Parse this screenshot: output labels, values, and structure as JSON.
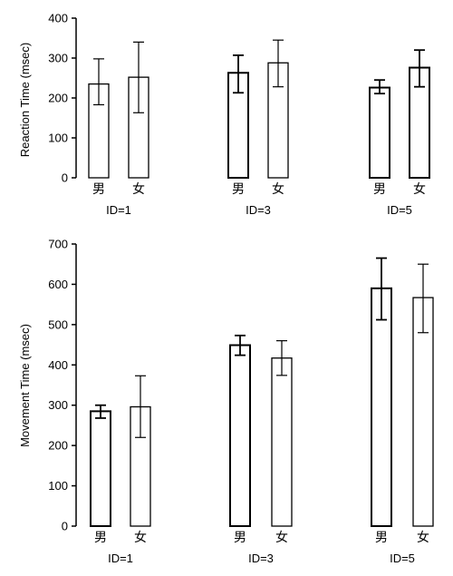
{
  "chart_data": [
    {
      "type": "bar",
      "ylabel": "Reaction Time (msec)",
      "ylim": [
        0,
        400
      ],
      "yticks": [
        0,
        100,
        200,
        300,
        400
      ],
      "categories": [
        "男",
        "女"
      ],
      "groups": [
        {
          "label": "ID=1",
          "values": [
            235,
            252
          ],
          "errors": [
            [
              183,
              298
            ],
            [
              163,
              340
            ]
          ]
        },
        {
          "label": "ID=3",
          "values": [
            263,
            288
          ],
          "errors": [
            [
              213,
              307
            ],
            [
              228,
              345
            ]
          ]
        },
        {
          "label": "ID=5",
          "values": [
            226,
            276
          ],
          "errors": [
            [
              211,
              245
            ],
            [
              228,
              320
            ]
          ]
        }
      ]
    },
    {
      "type": "bar",
      "ylabel": "Movement Time (msec)",
      "ylim": [
        0,
        700
      ],
      "yticks": [
        0,
        100,
        200,
        300,
        400,
        500,
        600,
        700
      ],
      "categories": [
        "男",
        "女"
      ],
      "groups": [
        {
          "label": "ID=1",
          "values": [
            285,
            296
          ],
          "errors": [
            [
              268,
              300
            ],
            [
              220,
              373
            ]
          ]
        },
        {
          "label": "ID=3",
          "values": [
            449,
            417
          ],
          "errors": [
            [
              424,
              473
            ],
            [
              374,
              460
            ]
          ]
        },
        {
          "label": "ID=5",
          "values": [
            590,
            567
          ],
          "errors": [
            [
              512,
              665
            ],
            [
              480,
              650
            ]
          ]
        }
      ]
    }
  ],
  "colors": {
    "stroke": "#000000",
    "fill": "#ffffff"
  }
}
